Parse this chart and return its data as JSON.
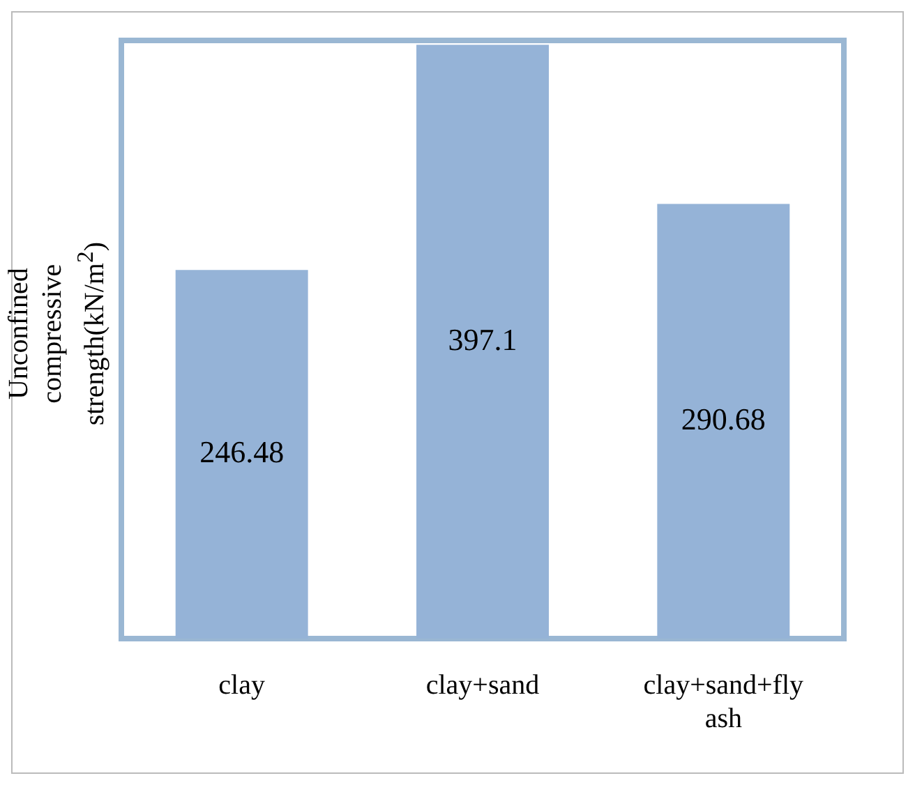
{
  "chart_data": {
    "type": "bar",
    "ylabel": "Unconfined compressive strength(kN/m$^{2}$)",
    "categories": [
      "clay",
      "clay+sand",
      "clay+sand+fly ash"
    ],
    "values": [
      246.48,
      397.1,
      290.68
    ],
    "color": "#95b3d7",
    "data_labels": true,
    "grid": false,
    "legend": false,
    "tick_labels": "x"
  }
}
